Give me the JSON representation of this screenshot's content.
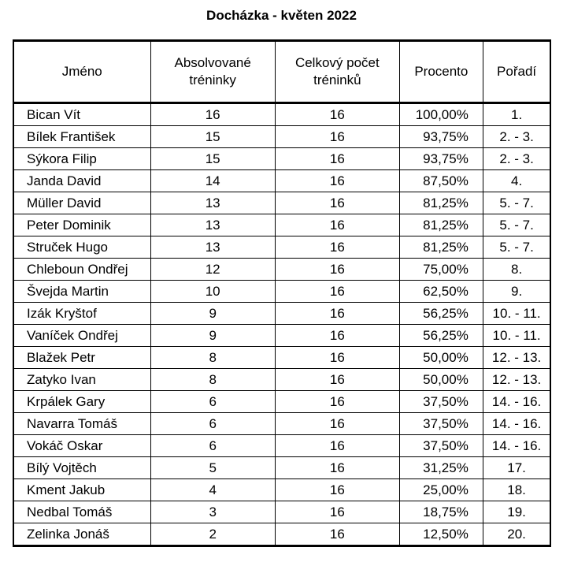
{
  "title": "Docházka - květen 2022",
  "headers": [
    "Jméno",
    "Absolvované tréninky",
    "Celkový počet tréninků",
    "Procento",
    "Pořadí"
  ],
  "rows": [
    [
      "Bican Vít",
      "16",
      "16",
      "100,00%",
      "1."
    ],
    [
      "Bílek František",
      "15",
      "16",
      "93,75%",
      "2. - 3."
    ],
    [
      "Sýkora Filip",
      "15",
      "16",
      "93,75%",
      "2. - 3."
    ],
    [
      "Janda David",
      "14",
      "16",
      "87,50%",
      "4."
    ],
    [
      "Müller David",
      "13",
      "16",
      "81,25%",
      "5. - 7."
    ],
    [
      "Peter Dominik",
      "13",
      "16",
      "81,25%",
      "5. - 7."
    ],
    [
      "Struček Hugo",
      "13",
      "16",
      "81,25%",
      "5. - 7."
    ],
    [
      "Chleboun Ondřej",
      "12",
      "16",
      "75,00%",
      "8."
    ],
    [
      "Švejda Martin",
      "10",
      "16",
      "62,50%",
      "9."
    ],
    [
      "Izák Kryštof",
      "9",
      "16",
      "56,25%",
      "10. - 11."
    ],
    [
      "Vaníček Ondřej",
      "9",
      "16",
      "56,25%",
      "10. - 11."
    ],
    [
      "Blažek Petr",
      "8",
      "16",
      "50,00%",
      "12. - 13."
    ],
    [
      "Zatyko Ivan",
      "8",
      "16",
      "50,00%",
      "12. - 13."
    ],
    [
      "Krpálek Gary",
      "6",
      "16",
      "37,50%",
      "14. - 16."
    ],
    [
      "Navarra Tomáš",
      "6",
      "16",
      "37,50%",
      "14. - 16."
    ],
    [
      "Vokáč Oskar",
      "6",
      "16",
      "37,50%",
      "14. - 16."
    ],
    [
      "Bílý Vojtěch",
      "5",
      "16",
      "31,25%",
      "17."
    ],
    [
      "Kment Jakub",
      "4",
      "16",
      "25,00%",
      "18."
    ],
    [
      "Nedbal Tomáš",
      "3",
      "16",
      "18,75%",
      "19."
    ],
    [
      "Zelinka Jonáš",
      "2",
      "16",
      "12,50%",
      "20."
    ]
  ]
}
